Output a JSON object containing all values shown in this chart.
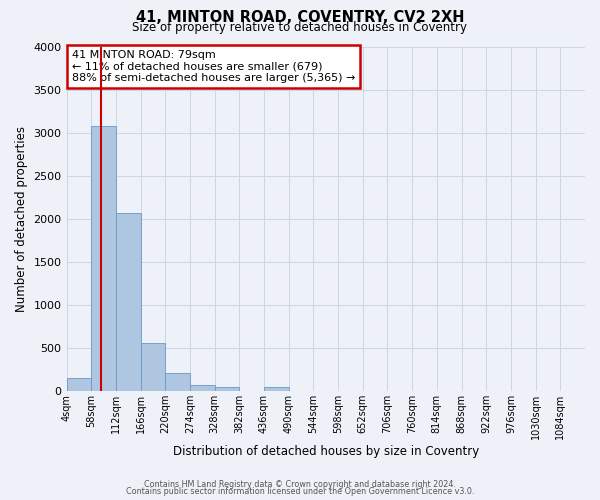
{
  "title": "41, MINTON ROAD, COVENTRY, CV2 2XH",
  "subtitle": "Size of property relative to detached houses in Coventry",
  "xlabel": "Distribution of detached houses by size in Coventry",
  "ylabel": "Number of detached properties",
  "bin_edges": [
    4,
    58,
    112,
    166,
    220,
    274,
    328,
    382,
    436,
    490,
    544,
    598,
    652,
    706,
    760,
    814,
    868,
    922,
    976,
    1030,
    1084
  ],
  "bin_labels": [
    "4sqm",
    "58sqm",
    "112sqm",
    "166sqm",
    "220sqm",
    "274sqm",
    "328sqm",
    "382sqm",
    "436sqm",
    "490sqm",
    "544sqm",
    "598sqm",
    "652sqm",
    "706sqm",
    "760sqm",
    "814sqm",
    "868sqm",
    "922sqm",
    "976sqm",
    "1030sqm",
    "1084sqm"
  ],
  "bar_heights": [
    150,
    3075,
    2065,
    560,
    210,
    65,
    45,
    0,
    45,
    0,
    0,
    0,
    0,
    0,
    0,
    0,
    0,
    0,
    0,
    0
  ],
  "bar_color": "#aec6e0",
  "bar_edge_color": "#6699cc",
  "vline_x": 79,
  "vline_color": "#cc0000",
  "ylim": [
    0,
    4000
  ],
  "yticks": [
    0,
    500,
    1000,
    1500,
    2000,
    2500,
    3000,
    3500,
    4000
  ],
  "annotation_text": "41 MINTON ROAD: 79sqm\n← 11% of detached houses are smaller (679)\n88% of semi-detached houses are larger (5,365) →",
  "annotation_box_color": "#ffffff",
  "annotation_box_edge_color": "#cc0000",
  "footer_line1": "Contains HM Land Registry data © Crown copyright and database right 2024.",
  "footer_line2": "Contains public sector information licensed under the Open Government Licence v3.0.",
  "bg_color": "#eef2f8",
  "plot_bg_color": "#eef2f8",
  "grid_color": "#ccd6e8"
}
